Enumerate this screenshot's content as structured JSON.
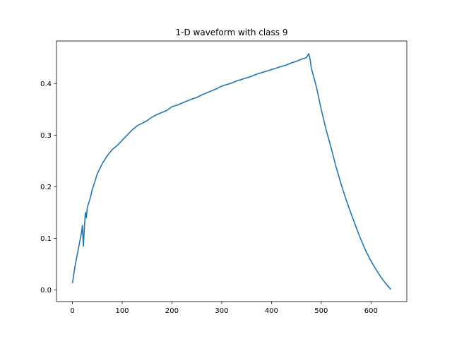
{
  "chart_data": {
    "type": "line",
    "title": "1-D waveform with class 9",
    "xlabel": "",
    "ylabel": "",
    "xlim": [
      -32,
      672
    ],
    "ylim": [
      -0.0225,
      0.4825
    ],
    "x_ticks": [
      0,
      100,
      200,
      300,
      400,
      500,
      600
    ],
    "x_tick_labels": [
      "0",
      "100",
      "200",
      "300",
      "400",
      "500",
      "600"
    ],
    "y_ticks": [
      0.0,
      0.1,
      0.2,
      0.3,
      0.4
    ],
    "y_tick_labels": [
      "0.0",
      "0.1",
      "0.2",
      "0.3",
      "0.4"
    ],
    "grid": false,
    "legend": "none",
    "series": [
      {
        "color": "#1f77b4",
        "x": [
          0,
          5,
          10,
          15,
          18,
          20,
          22,
          24,
          26,
          28,
          30,
          35,
          40,
          50,
          60,
          70,
          80,
          90,
          100,
          110,
          120,
          130,
          140,
          150,
          160,
          170,
          180,
          190,
          200,
          210,
          220,
          230,
          240,
          250,
          260,
          270,
          280,
          290,
          300,
          310,
          320,
          330,
          340,
          350,
          360,
          370,
          380,
          390,
          400,
          410,
          420,
          430,
          440,
          450,
          460,
          470,
          475,
          478,
          480,
          490,
          500,
          510,
          520,
          530,
          540,
          550,
          560,
          570,
          580,
          590,
          600,
          610,
          620,
          630,
          640
        ],
        "y": [
          0.013,
          0.045,
          0.07,
          0.095,
          0.11,
          0.125,
          0.085,
          0.12,
          0.15,
          0.14,
          0.16,
          0.175,
          0.195,
          0.225,
          0.245,
          0.26,
          0.272,
          0.28,
          0.29,
          0.3,
          0.31,
          0.318,
          0.323,
          0.328,
          0.335,
          0.34,
          0.344,
          0.348,
          0.355,
          0.358,
          0.362,
          0.366,
          0.37,
          0.373,
          0.378,
          0.382,
          0.386,
          0.39,
          0.395,
          0.398,
          0.401,
          0.405,
          0.408,
          0.411,
          0.414,
          0.418,
          0.421,
          0.424,
          0.427,
          0.43,
          0.433,
          0.436,
          0.44,
          0.443,
          0.447,
          0.45,
          0.458,
          0.445,
          0.43,
          0.395,
          0.35,
          0.31,
          0.275,
          0.238,
          0.205,
          0.175,
          0.148,
          0.122,
          0.097,
          0.075,
          0.056,
          0.04,
          0.025,
          0.012,
          0.001
        ]
      }
    ]
  }
}
